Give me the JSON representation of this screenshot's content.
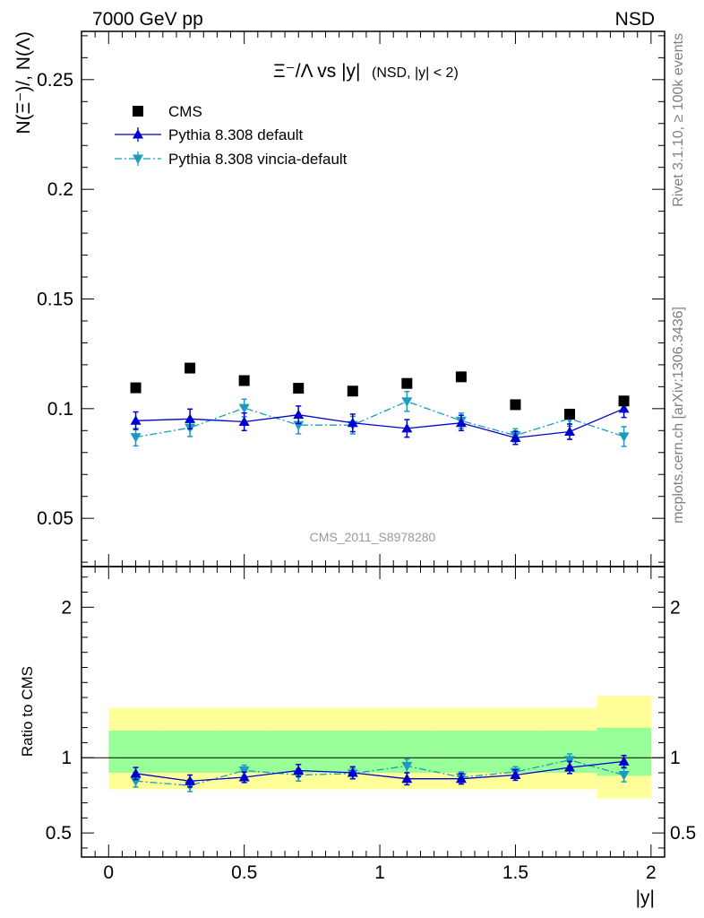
{
  "header": {
    "left": "7000 GeV pp",
    "right": "NSD"
  },
  "side_labels": {
    "rivet": "Rivet 3.1.10, ≥ 100k events",
    "mcplots": "mcplots.cern.ch [arXiv:1306.3436]"
  },
  "analysis_id": "CMS_2011_S8978280",
  "chart_data": [
    {
      "type": "scatter",
      "panel": "main",
      "title": "Ξ⁻/Λ vs |y|",
      "title_note": "(NSD, |y| < 2)",
      "ylabel": "N(Ξ⁻)/, N(Λ)",
      "xlim": [
        -0.1,
        2.05
      ],
      "ylim": [
        0.028,
        0.272
      ],
      "yticks": [
        "0.05",
        "0.1",
        "0.15",
        "0.2",
        "0.25"
      ],
      "legend_position": "top-left",
      "x": [
        0.1,
        0.3,
        0.5,
        0.7,
        0.9,
        1.1,
        1.3,
        1.5,
        1.7,
        1.9
      ],
      "series": [
        {
          "name": "CMS",
          "color": "#000000",
          "marker": "square",
          "values": [
            0.1095,
            0.1185,
            0.1128,
            0.1093,
            0.108,
            0.1115,
            0.1145,
            0.1018,
            0.0975,
            0.1035
          ]
        },
        {
          "name": "Pythia 8.308 default",
          "color": "#0000cc",
          "marker": "triangle-up",
          "line": "solid",
          "values": [
            0.0945,
            0.0953,
            0.094,
            0.0972,
            0.0935,
            0.091,
            0.0935,
            0.0867,
            0.0895,
            0.1
          ],
          "errors": [
            0.004,
            0.0045,
            0.004,
            0.004,
            0.004,
            0.004,
            0.0035,
            0.003,
            0.0035,
            0.004
          ]
        },
        {
          "name": "Pythia 8.308 vincia-default",
          "color": "#1a9bbf",
          "marker": "triangle-down",
          "line": "dashdot",
          "values": [
            0.087,
            0.0913,
            0.1003,
            0.0925,
            0.0925,
            0.1033,
            0.0945,
            0.0878,
            0.0955,
            0.0873
          ],
          "errors": [
            0.004,
            0.004,
            0.004,
            0.004,
            0.004,
            0.0045,
            0.0035,
            0.003,
            0.0035,
            0.0045
          ]
        }
      ]
    },
    {
      "type": "scatter",
      "panel": "ratio",
      "ylabel": "Ratio to CMS",
      "xlabel": "|y|",
      "xlim": [
        -0.1,
        2.05
      ],
      "ylim": [
        0.34,
        2.27
      ],
      "yticks": [
        "0.5",
        "1",
        "2"
      ],
      "xticks": [
        "0",
        "0.5",
        "1",
        "1.5",
        "2"
      ],
      "x": [
        0.1,
        0.3,
        0.5,
        0.7,
        0.9,
        1.1,
        1.3,
        1.5,
        1.7,
        1.9
      ],
      "bands": [
        {
          "name": "yellow",
          "color": "#ffff99",
          "xedges": [
            0.0,
            0.2,
            0.4,
            0.6,
            0.8,
            1.0,
            1.2,
            1.4,
            1.6,
            1.8,
            2.0
          ],
          "lo": [
            0.79,
            0.79,
            0.79,
            0.79,
            0.79,
            0.79,
            0.79,
            0.79,
            0.79,
            0.73
          ],
          "hi": [
            1.33,
            1.33,
            1.33,
            1.33,
            1.33,
            1.33,
            1.33,
            1.33,
            1.33,
            1.41
          ]
        },
        {
          "name": "green",
          "color": "#99ff99",
          "xedges": [
            0.0,
            0.2,
            0.4,
            0.6,
            0.8,
            1.0,
            1.2,
            1.4,
            1.6,
            1.8,
            2.0
          ],
          "lo": [
            0.9,
            0.9,
            0.9,
            0.9,
            0.9,
            0.9,
            0.9,
            0.9,
            0.9,
            0.88
          ],
          "hi": [
            1.18,
            1.18,
            1.18,
            1.18,
            1.18,
            1.18,
            1.18,
            1.18,
            1.18,
            1.2
          ]
        }
      ],
      "series": [
        {
          "name": "Pythia 8.308 default",
          "color": "#0000cc",
          "marker": "triangle-up",
          "line": "solid",
          "values": [
            0.895,
            0.845,
            0.87,
            0.915,
            0.9,
            0.86,
            0.86,
            0.885,
            0.935,
            0.975
          ],
          "errors": [
            0.04,
            0.04,
            0.035,
            0.04,
            0.04,
            0.04,
            0.035,
            0.035,
            0.04,
            0.04
          ]
        },
        {
          "name": "Pythia 8.308 vincia-default",
          "color": "#1a9bbf",
          "marker": "triangle-down",
          "line": "dashdot",
          "values": [
            0.845,
            0.815,
            0.915,
            0.885,
            0.895,
            0.945,
            0.87,
            0.905,
            0.985,
            0.885
          ],
          "errors": [
            0.04,
            0.04,
            0.035,
            0.04,
            0.035,
            0.045,
            0.035,
            0.035,
            0.04,
            0.045
          ]
        }
      ]
    }
  ]
}
